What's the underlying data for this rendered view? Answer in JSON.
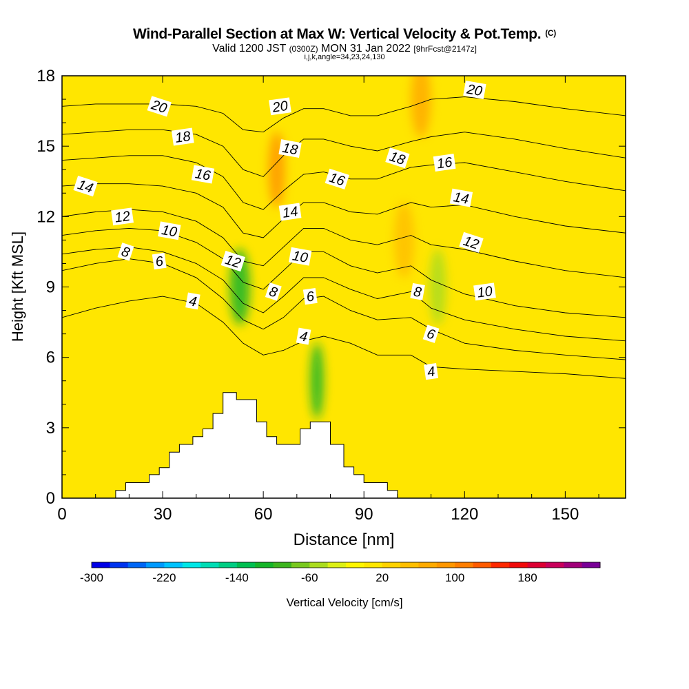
{
  "title": {
    "main": "Wind-Parallel Section at Max W: Vertical Velocity & Pot.Temp.",
    "mark": "(C)",
    "valid_prefix": "Valid 1200 JST",
    "valid_utc": "(0300Z)",
    "valid_date": "MON 31 Jan 2022",
    "forecast": "[9hrFcst@2147z]",
    "indices": "i,j,k,angle=34,23,24,130"
  },
  "colors": {
    "background": "#ffffff",
    "contour": "#000000",
    "terrain": "#ffffff"
  },
  "chart_data": {
    "type": "heatmap",
    "xlabel": "Distance [nm]",
    "ylabel": "Height [Kft MSL]",
    "xlim": [
      0,
      168
    ],
    "ylim": [
      0,
      18
    ],
    "xticks": [
      0,
      30,
      60,
      90,
      120,
      150
    ],
    "yticks": [
      0,
      3,
      6,
      9,
      12,
      15,
      18
    ],
    "grid": false,
    "colorbar": {
      "label": "Vertical Velocity [cm/s]",
      "min": -300,
      "max": 200,
      "step": 20,
      "tick_labels": [
        "-300",
        "-220",
        "-140",
        "-60",
        "20",
        "100",
        "180"
      ],
      "colors": [
        "#0000e6",
        "#0033ee",
        "#0066f5",
        "#0099ff",
        "#00c2ff",
        "#00e6e6",
        "#00dcb4",
        "#00cd82",
        "#00be50",
        "#14b428",
        "#3cb41e",
        "#78c81e",
        "#aadc1e",
        "#dcf014",
        "#fff500",
        "#ffe600",
        "#ffd200",
        "#ffbe00",
        "#ffaa00",
        "#ff9600",
        "#ff7d00",
        "#ff5a00",
        "#ff2800",
        "#f00a0a",
        "#dc0032",
        "#c8005a",
        "#a00078",
        "#780096"
      ]
    },
    "velocity_field": {
      "background_value": 10,
      "features": [
        {
          "x": 112,
          "y": 9,
          "w": 2.5,
          "velocity": -60,
          "value_type": "updraft"
        },
        {
          "x": 102,
          "y": 11,
          "w": 3,
          "velocity": 40,
          "value_type": "updraft"
        },
        {
          "x": 53,
          "y": 9,
          "w": 3,
          "velocity": -110,
          "value_type": "downdraft"
        },
        {
          "x": 76,
          "y": 5,
          "w": 2,
          "velocity": -120,
          "value_type": "downdraft"
        },
        {
          "x": 64,
          "y": 14,
          "w": 2.5,
          "velocity": 95,
          "value_type": "updraft"
        },
        {
          "x": 107,
          "y": 17,
          "w": 3,
          "velocity": 70,
          "value_type": "updraft"
        }
      ]
    },
    "terrain_profile": {
      "x": [
        0,
        16,
        16,
        19,
        19,
        26,
        26,
        29,
        29,
        32,
        32,
        35,
        35,
        39,
        39,
        42,
        42,
        45,
        45,
        48,
        48,
        52,
        52,
        58,
        58,
        61,
        61,
        64,
        64,
        71,
        71,
        74,
        74,
        80,
        80,
        84,
        84,
        87,
        87,
        90,
        90,
        97,
        97,
        100,
        100,
        168
      ],
      "y": [
        0,
        0,
        0.33,
        0.33,
        0.66,
        0.66,
        1.0,
        1.0,
        1.3,
        1.3,
        1.96,
        1.96,
        2.29,
        2.29,
        2.62,
        2.62,
        2.95,
        2.95,
        3.61,
        3.61,
        4.5,
        4.5,
        4.2,
        4.2,
        3.25,
        3.25,
        2.62,
        2.62,
        2.29,
        2.29,
        2.95,
        2.95,
        3.25,
        3.25,
        2.29,
        2.29,
        1.33,
        1.33,
        1.0,
        1.0,
        0.66,
        0.66,
        0.33,
        0.33,
        0,
        0
      ]
    },
    "theta_contours": {
      "levels": [
        4,
        6,
        8,
        10,
        12,
        14,
        16,
        18,
        20
      ],
      "labels": [
        {
          "text": "20",
          "x": 29,
          "y": 16.7
        },
        {
          "text": "18",
          "x": 36,
          "y": 15.4
        },
        {
          "text": "16",
          "x": 42,
          "y": 13.8
        },
        {
          "text": "14",
          "x": 7,
          "y": 13.3
        },
        {
          "text": "12",
          "x": 18,
          "y": 12.0
        },
        {
          "text": "10",
          "x": 32,
          "y": 11.4
        },
        {
          "text": "8",
          "x": 19,
          "y": 10.5
        },
        {
          "text": "6",
          "x": 29,
          "y": 10.1
        },
        {
          "text": "4",
          "x": 39,
          "y": 8.4
        },
        {
          "text": "12",
          "x": 51,
          "y": 10.1
        },
        {
          "text": "20",
          "x": 65,
          "y": 16.7
        },
        {
          "text": "18",
          "x": 68,
          "y": 14.9
        },
        {
          "text": "16",
          "x": 82,
          "y": 13.6
        },
        {
          "text": "14",
          "x": 68,
          "y": 12.2
        },
        {
          "text": "10",
          "x": 71,
          "y": 10.3
        },
        {
          "text": "8",
          "x": 63,
          "y": 8.8
        },
        {
          "text": "6",
          "x": 74,
          "y": 8.6
        },
        {
          "text": "4",
          "x": 72,
          "y": 6.9
        },
        {
          "text": "18",
          "x": 100,
          "y": 14.5
        },
        {
          "text": "16",
          "x": 114,
          "y": 14.3
        },
        {
          "text": "14",
          "x": 119,
          "y": 12.8
        },
        {
          "text": "12",
          "x": 122,
          "y": 10.9
        },
        {
          "text": "10",
          "x": 126,
          "y": 8.8
        },
        {
          "text": "8",
          "x": 106,
          "y": 8.8
        },
        {
          "text": "6",
          "x": 110,
          "y": 7.0
        },
        {
          "text": "4",
          "x": 110,
          "y": 5.4
        },
        {
          "text": "20",
          "x": 123,
          "y": 17.4
        }
      ],
      "lines": [
        {
          "level": 4,
          "x": [
            0,
            10,
            20,
            30,
            40,
            48,
            54,
            60,
            66,
            72,
            78,
            86,
            94,
            104,
            110,
            120,
            135,
            150,
            168
          ],
          "y": [
            7.7,
            8.1,
            8.4,
            8.6,
            8.3,
            7.5,
            6.6,
            6.1,
            6.3,
            6.7,
            6.9,
            6.6,
            6.1,
            6.1,
            5.6,
            5.5,
            5.4,
            5.3,
            5.1
          ]
        },
        {
          "level": 6,
          "x": [
            0,
            10,
            20,
            30,
            40,
            48,
            54,
            60,
            66,
            72,
            78,
            86,
            94,
            104,
            110,
            120,
            135,
            150,
            168
          ],
          "y": [
            9.7,
            10.0,
            10.2,
            10.0,
            9.4,
            8.5,
            7.6,
            7.2,
            7.7,
            8.5,
            8.6,
            8.0,
            7.6,
            7.7,
            7.2,
            6.6,
            6.3,
            6.1,
            5.9
          ]
        },
        {
          "level": 8,
          "x": [
            0,
            10,
            20,
            30,
            40,
            48,
            54,
            60,
            66,
            72,
            78,
            86,
            94,
            104,
            110,
            120,
            135,
            150,
            168
          ],
          "y": [
            10.4,
            10.6,
            10.7,
            10.5,
            10.0,
            9.3,
            8.3,
            7.9,
            8.6,
            9.4,
            9.4,
            8.9,
            8.5,
            8.8,
            8.1,
            7.6,
            7.2,
            6.9,
            6.7
          ]
        },
        {
          "level": 10,
          "x": [
            0,
            10,
            20,
            30,
            40,
            48,
            54,
            60,
            66,
            72,
            78,
            86,
            94,
            104,
            110,
            120,
            135,
            150,
            168
          ],
          "y": [
            11.2,
            11.4,
            11.5,
            11.4,
            10.9,
            10.2,
            9.2,
            8.9,
            9.7,
            10.5,
            10.5,
            9.9,
            9.6,
            9.9,
            9.3,
            8.7,
            8.2,
            7.9,
            7.7
          ]
        },
        {
          "level": 12,
          "x": [
            0,
            10,
            20,
            30,
            40,
            48,
            54,
            60,
            66,
            72,
            78,
            86,
            94,
            104,
            110,
            120,
            135,
            150,
            168
          ],
          "y": [
            12.0,
            12.2,
            12.3,
            12.2,
            11.8,
            11.1,
            10.1,
            9.9,
            10.7,
            11.5,
            11.5,
            11.0,
            10.8,
            11.2,
            10.8,
            10.6,
            10.1,
            9.7,
            9.4
          ]
        },
        {
          "level": 14,
          "x": [
            0,
            10,
            20,
            30,
            40,
            48,
            54,
            60,
            66,
            72,
            78,
            86,
            94,
            104,
            110,
            120,
            135,
            150,
            168
          ],
          "y": [
            13.3,
            13.4,
            13.4,
            13.3,
            13.0,
            12.4,
            11.3,
            11.1,
            11.9,
            12.6,
            12.6,
            12.2,
            12.1,
            12.6,
            12.4,
            12.5,
            12.0,
            11.6,
            11.3
          ]
        },
        {
          "level": 16,
          "x": [
            0,
            10,
            20,
            30,
            40,
            48,
            54,
            60,
            66,
            72,
            78,
            86,
            94,
            104,
            110,
            120,
            135,
            150,
            168
          ],
          "y": [
            14.4,
            14.5,
            14.6,
            14.6,
            14.3,
            13.7,
            12.6,
            12.3,
            13.1,
            13.8,
            13.9,
            13.6,
            13.6,
            14.1,
            14.2,
            14.3,
            13.9,
            13.5,
            13.1
          ]
        },
        {
          "level": 18,
          "x": [
            0,
            10,
            20,
            30,
            40,
            48,
            54,
            60,
            66,
            72,
            78,
            86,
            94,
            104,
            110,
            120,
            135,
            150,
            168
          ],
          "y": [
            15.5,
            15.6,
            15.7,
            15.7,
            15.5,
            15.0,
            14.0,
            13.7,
            14.6,
            15.3,
            15.3,
            15.0,
            14.8,
            15.2,
            15.4,
            15.6,
            15.3,
            14.9,
            14.5
          ]
        },
        {
          "level": 20,
          "x": [
            0,
            10,
            20,
            30,
            40,
            48,
            54,
            60,
            66,
            72,
            78,
            86,
            94,
            104,
            110,
            120,
            135,
            150,
            168
          ],
          "y": [
            16.7,
            16.8,
            16.8,
            16.8,
            16.7,
            16.4,
            15.7,
            15.6,
            16.2,
            16.6,
            16.6,
            16.3,
            16.3,
            16.7,
            17.0,
            17.1,
            16.9,
            16.6,
            16.3
          ]
        }
      ]
    }
  }
}
